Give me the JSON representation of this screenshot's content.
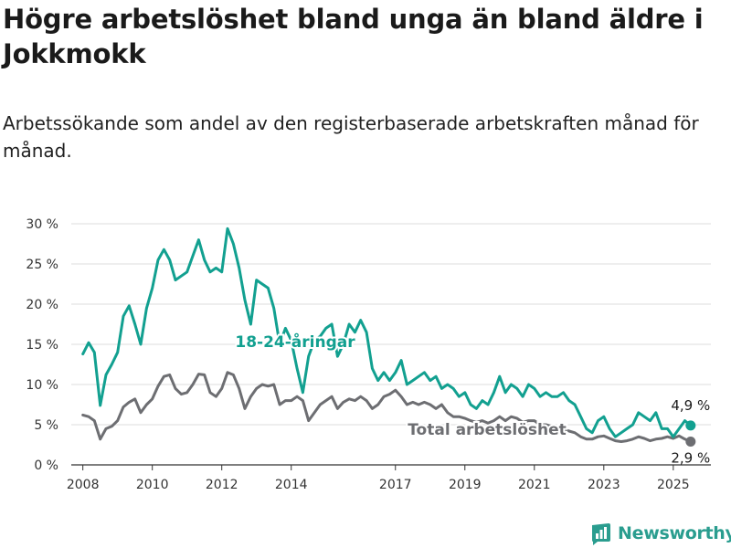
{
  "title": "Högre arbetslöshet bland unga än bland äldre i Jokkmokk",
  "subtitle": "Arbetssökande som andel av den registerbaserade arbetskraften månad för månad.",
  "brand": {
    "name": "Newsworthy",
    "icon": "newsworthy-logo-icon"
  },
  "colors": {
    "youth": "#12a090",
    "total": "#6d6e72",
    "grid": "#dddddd",
    "text": "#333333"
  },
  "chart_data": {
    "type": "line",
    "x_ticks": [
      "2008",
      "2010",
      "2012",
      "2014",
      "2017",
      "2019",
      "2021",
      "2023",
      "2025"
    ],
    "y_ticks": [
      "0 %",
      "5 %",
      "10 %",
      "15 %",
      "20 %",
      "25 %",
      "30 %"
    ],
    "ylim": [
      0,
      30
    ],
    "xlim": [
      "2007-09",
      "2026-02"
    ],
    "grid": true,
    "series": [
      {
        "name": "18-24-åringar",
        "color": "#12a090",
        "end_label": "4,9 %",
        "points": [
          [
            "2008-01",
            13.8
          ],
          [
            "2008-03",
            15.2
          ],
          [
            "2008-05",
            14.0
          ],
          [
            "2008-07",
            7.4
          ],
          [
            "2008-09",
            11.2
          ],
          [
            "2008-11",
            12.5
          ],
          [
            "2009-01",
            14.0
          ],
          [
            "2009-03",
            18.5
          ],
          [
            "2009-05",
            19.8
          ],
          [
            "2009-07",
            17.5
          ],
          [
            "2009-09",
            15.0
          ],
          [
            "2009-11",
            19.5
          ],
          [
            "2010-01",
            22.0
          ],
          [
            "2010-03",
            25.5
          ],
          [
            "2010-05",
            26.8
          ],
          [
            "2010-07",
            25.5
          ],
          [
            "2010-09",
            23.0
          ],
          [
            "2010-11",
            23.5
          ],
          [
            "2011-01",
            24.0
          ],
          [
            "2011-03",
            26.0
          ],
          [
            "2011-05",
            28.0
          ],
          [
            "2011-07",
            25.5
          ],
          [
            "2011-09",
            24.0
          ],
          [
            "2011-11",
            24.5
          ],
          [
            "2012-01",
            24.0
          ],
          [
            "2012-03",
            29.4
          ],
          [
            "2012-05",
            27.5
          ],
          [
            "2012-07",
            24.5
          ],
          [
            "2012-09",
            20.5
          ],
          [
            "2012-11",
            17.5
          ],
          [
            "2013-01",
            23.0
          ],
          [
            "2013-03",
            22.5
          ],
          [
            "2013-05",
            22.0
          ],
          [
            "2013-07",
            19.5
          ],
          [
            "2013-09",
            15.0
          ],
          [
            "2013-11",
            17.0
          ],
          [
            "2014-01",
            15.5
          ],
          [
            "2014-03",
            12.0
          ],
          [
            "2014-05",
            9.0
          ],
          [
            "2014-07",
            13.5
          ],
          [
            "2014-09",
            15.5
          ],
          [
            "2014-11",
            16.0
          ],
          [
            "2015-01",
            17.0
          ],
          [
            "2015-03",
            17.5
          ],
          [
            "2015-05",
            13.5
          ],
          [
            "2015-07",
            15.0
          ],
          [
            "2015-09",
            17.5
          ],
          [
            "2015-11",
            16.5
          ],
          [
            "2016-01",
            18.0
          ],
          [
            "2016-03",
            16.5
          ],
          [
            "2016-05",
            12.0
          ],
          [
            "2016-07",
            10.5
          ],
          [
            "2016-09",
            11.5
          ],
          [
            "2016-11",
            10.5
          ],
          [
            "2017-01",
            11.5
          ],
          [
            "2017-03",
            13.0
          ],
          [
            "2017-05",
            10.0
          ],
          [
            "2017-07",
            10.5
          ],
          [
            "2017-09",
            11.0
          ],
          [
            "2017-11",
            11.5
          ],
          [
            "2018-01",
            10.5
          ],
          [
            "2018-03",
            11.0
          ],
          [
            "2018-05",
            9.5
          ],
          [
            "2018-07",
            10.0
          ],
          [
            "2018-09",
            9.5
          ],
          [
            "2018-11",
            8.5
          ],
          [
            "2019-01",
            9.0
          ],
          [
            "2019-03",
            7.5
          ],
          [
            "2019-05",
            7.0
          ],
          [
            "2019-07",
            8.0
          ],
          [
            "2019-09",
            7.5
          ],
          [
            "2019-11",
            9.0
          ],
          [
            "2020-01",
            11.0
          ],
          [
            "2020-03",
            9.0
          ],
          [
            "2020-05",
            10.0
          ],
          [
            "2020-07",
            9.5
          ],
          [
            "2020-09",
            8.5
          ],
          [
            "2020-11",
            10.0
          ],
          [
            "2021-01",
            9.5
          ],
          [
            "2021-03",
            8.5
          ],
          [
            "2021-05",
            9.0
          ],
          [
            "2021-07",
            8.5
          ],
          [
            "2021-09",
            8.5
          ],
          [
            "2021-11",
            9.0
          ],
          [
            "2022-01",
            8.0
          ],
          [
            "2022-03",
            7.5
          ],
          [
            "2022-05",
            6.0
          ],
          [
            "2022-07",
            4.5
          ],
          [
            "2022-09",
            4.0
          ],
          [
            "2022-11",
            5.5
          ],
          [
            "2023-01",
            6.0
          ],
          [
            "2023-03",
            4.5
          ],
          [
            "2023-05",
            3.5
          ],
          [
            "2023-07",
            4.0
          ],
          [
            "2023-09",
            4.5
          ],
          [
            "2023-11",
            5.0
          ],
          [
            "2024-01",
            6.5
          ],
          [
            "2024-03",
            6.0
          ],
          [
            "2024-05",
            5.5
          ],
          [
            "2024-07",
            6.5
          ],
          [
            "2024-09",
            4.5
          ],
          [
            "2024-11",
            4.5
          ],
          [
            "2025-01",
            3.5
          ],
          [
            "2025-03",
            4.5
          ],
          [
            "2025-05",
            5.5
          ],
          [
            "2025-07",
            4.9
          ]
        ]
      },
      {
        "name": "Total arbetslöshet",
        "color": "#6d6e72",
        "end_label": "2,9 %",
        "points": [
          [
            "2008-01",
            6.2
          ],
          [
            "2008-03",
            6.0
          ],
          [
            "2008-05",
            5.5
          ],
          [
            "2008-07",
            3.2
          ],
          [
            "2008-09",
            4.5
          ],
          [
            "2008-11",
            4.8
          ],
          [
            "2009-01",
            5.5
          ],
          [
            "2009-03",
            7.2
          ],
          [
            "2009-05",
            7.8
          ],
          [
            "2009-07",
            8.2
          ],
          [
            "2009-09",
            6.5
          ],
          [
            "2009-11",
            7.5
          ],
          [
            "2010-01",
            8.2
          ],
          [
            "2010-03",
            9.8
          ],
          [
            "2010-05",
            11.0
          ],
          [
            "2010-07",
            11.2
          ],
          [
            "2010-09",
            9.5
          ],
          [
            "2010-11",
            8.8
          ],
          [
            "2011-01",
            9.0
          ],
          [
            "2011-03",
            10.0
          ],
          [
            "2011-05",
            11.3
          ],
          [
            "2011-07",
            11.2
          ],
          [
            "2011-09",
            9.0
          ],
          [
            "2011-11",
            8.5
          ],
          [
            "2012-01",
            9.5
          ],
          [
            "2012-03",
            11.5
          ],
          [
            "2012-05",
            11.2
          ],
          [
            "2012-07",
            9.5
          ],
          [
            "2012-09",
            7.0
          ],
          [
            "2012-11",
            8.5
          ],
          [
            "2013-01",
            9.5
          ],
          [
            "2013-03",
            10.0
          ],
          [
            "2013-05",
            9.8
          ],
          [
            "2013-07",
            10.0
          ],
          [
            "2013-09",
            7.5
          ],
          [
            "2013-11",
            8.0
          ],
          [
            "2014-01",
            8.0
          ],
          [
            "2014-03",
            8.5
          ],
          [
            "2014-05",
            8.0
          ],
          [
            "2014-07",
            5.5
          ],
          [
            "2014-09",
            6.5
          ],
          [
            "2014-11",
            7.5
          ],
          [
            "2015-01",
            8.0
          ],
          [
            "2015-03",
            8.5
          ],
          [
            "2015-05",
            7.0
          ],
          [
            "2015-07",
            7.8
          ],
          [
            "2015-09",
            8.2
          ],
          [
            "2015-11",
            8.0
          ],
          [
            "2016-01",
            8.5
          ],
          [
            "2016-03",
            8.0
          ],
          [
            "2016-05",
            7.0
          ],
          [
            "2016-07",
            7.5
          ],
          [
            "2016-09",
            8.5
          ],
          [
            "2016-11",
            8.8
          ],
          [
            "2017-01",
            9.3
          ],
          [
            "2017-03",
            8.5
          ],
          [
            "2017-05",
            7.5
          ],
          [
            "2017-07",
            7.8
          ],
          [
            "2017-09",
            7.5
          ],
          [
            "2017-11",
            7.8
          ],
          [
            "2018-01",
            7.5
          ],
          [
            "2018-03",
            7.0
          ],
          [
            "2018-05",
            7.5
          ],
          [
            "2018-07",
            6.5
          ],
          [
            "2018-09",
            6.0
          ],
          [
            "2018-11",
            6.0
          ],
          [
            "2019-01",
            5.8
          ],
          [
            "2019-03",
            5.5
          ],
          [
            "2019-05",
            5.3
          ],
          [
            "2019-07",
            5.5
          ],
          [
            "2019-09",
            5.2
          ],
          [
            "2019-11",
            5.5
          ],
          [
            "2020-01",
            6.0
          ],
          [
            "2020-03",
            5.5
          ],
          [
            "2020-05",
            6.0
          ],
          [
            "2020-07",
            5.8
          ],
          [
            "2020-09",
            5.3
          ],
          [
            "2020-11",
            5.5
          ],
          [
            "2021-01",
            5.5
          ],
          [
            "2021-03",
            5.0
          ],
          [
            "2021-05",
            5.0
          ],
          [
            "2021-07",
            4.8
          ],
          [
            "2021-09",
            4.5
          ],
          [
            "2021-11",
            4.5
          ],
          [
            "2022-01",
            4.2
          ],
          [
            "2022-03",
            4.0
          ],
          [
            "2022-05",
            3.5
          ],
          [
            "2022-07",
            3.2
          ],
          [
            "2022-09",
            3.2
          ],
          [
            "2022-11",
            3.5
          ],
          [
            "2023-01",
            3.6
          ],
          [
            "2023-03",
            3.3
          ],
          [
            "2023-05",
            3.0
          ],
          [
            "2023-07",
            2.9
          ],
          [
            "2023-09",
            3.0
          ],
          [
            "2023-11",
            3.2
          ],
          [
            "2024-01",
            3.5
          ],
          [
            "2024-03",
            3.3
          ],
          [
            "2024-05",
            3.0
          ],
          [
            "2024-07",
            3.2
          ],
          [
            "2024-09",
            3.3
          ],
          [
            "2024-11",
            3.5
          ],
          [
            "2025-01",
            3.3
          ],
          [
            "2025-03",
            3.6
          ],
          [
            "2025-05",
            3.2
          ],
          [
            "2025-07",
            2.9
          ]
        ]
      }
    ]
  }
}
